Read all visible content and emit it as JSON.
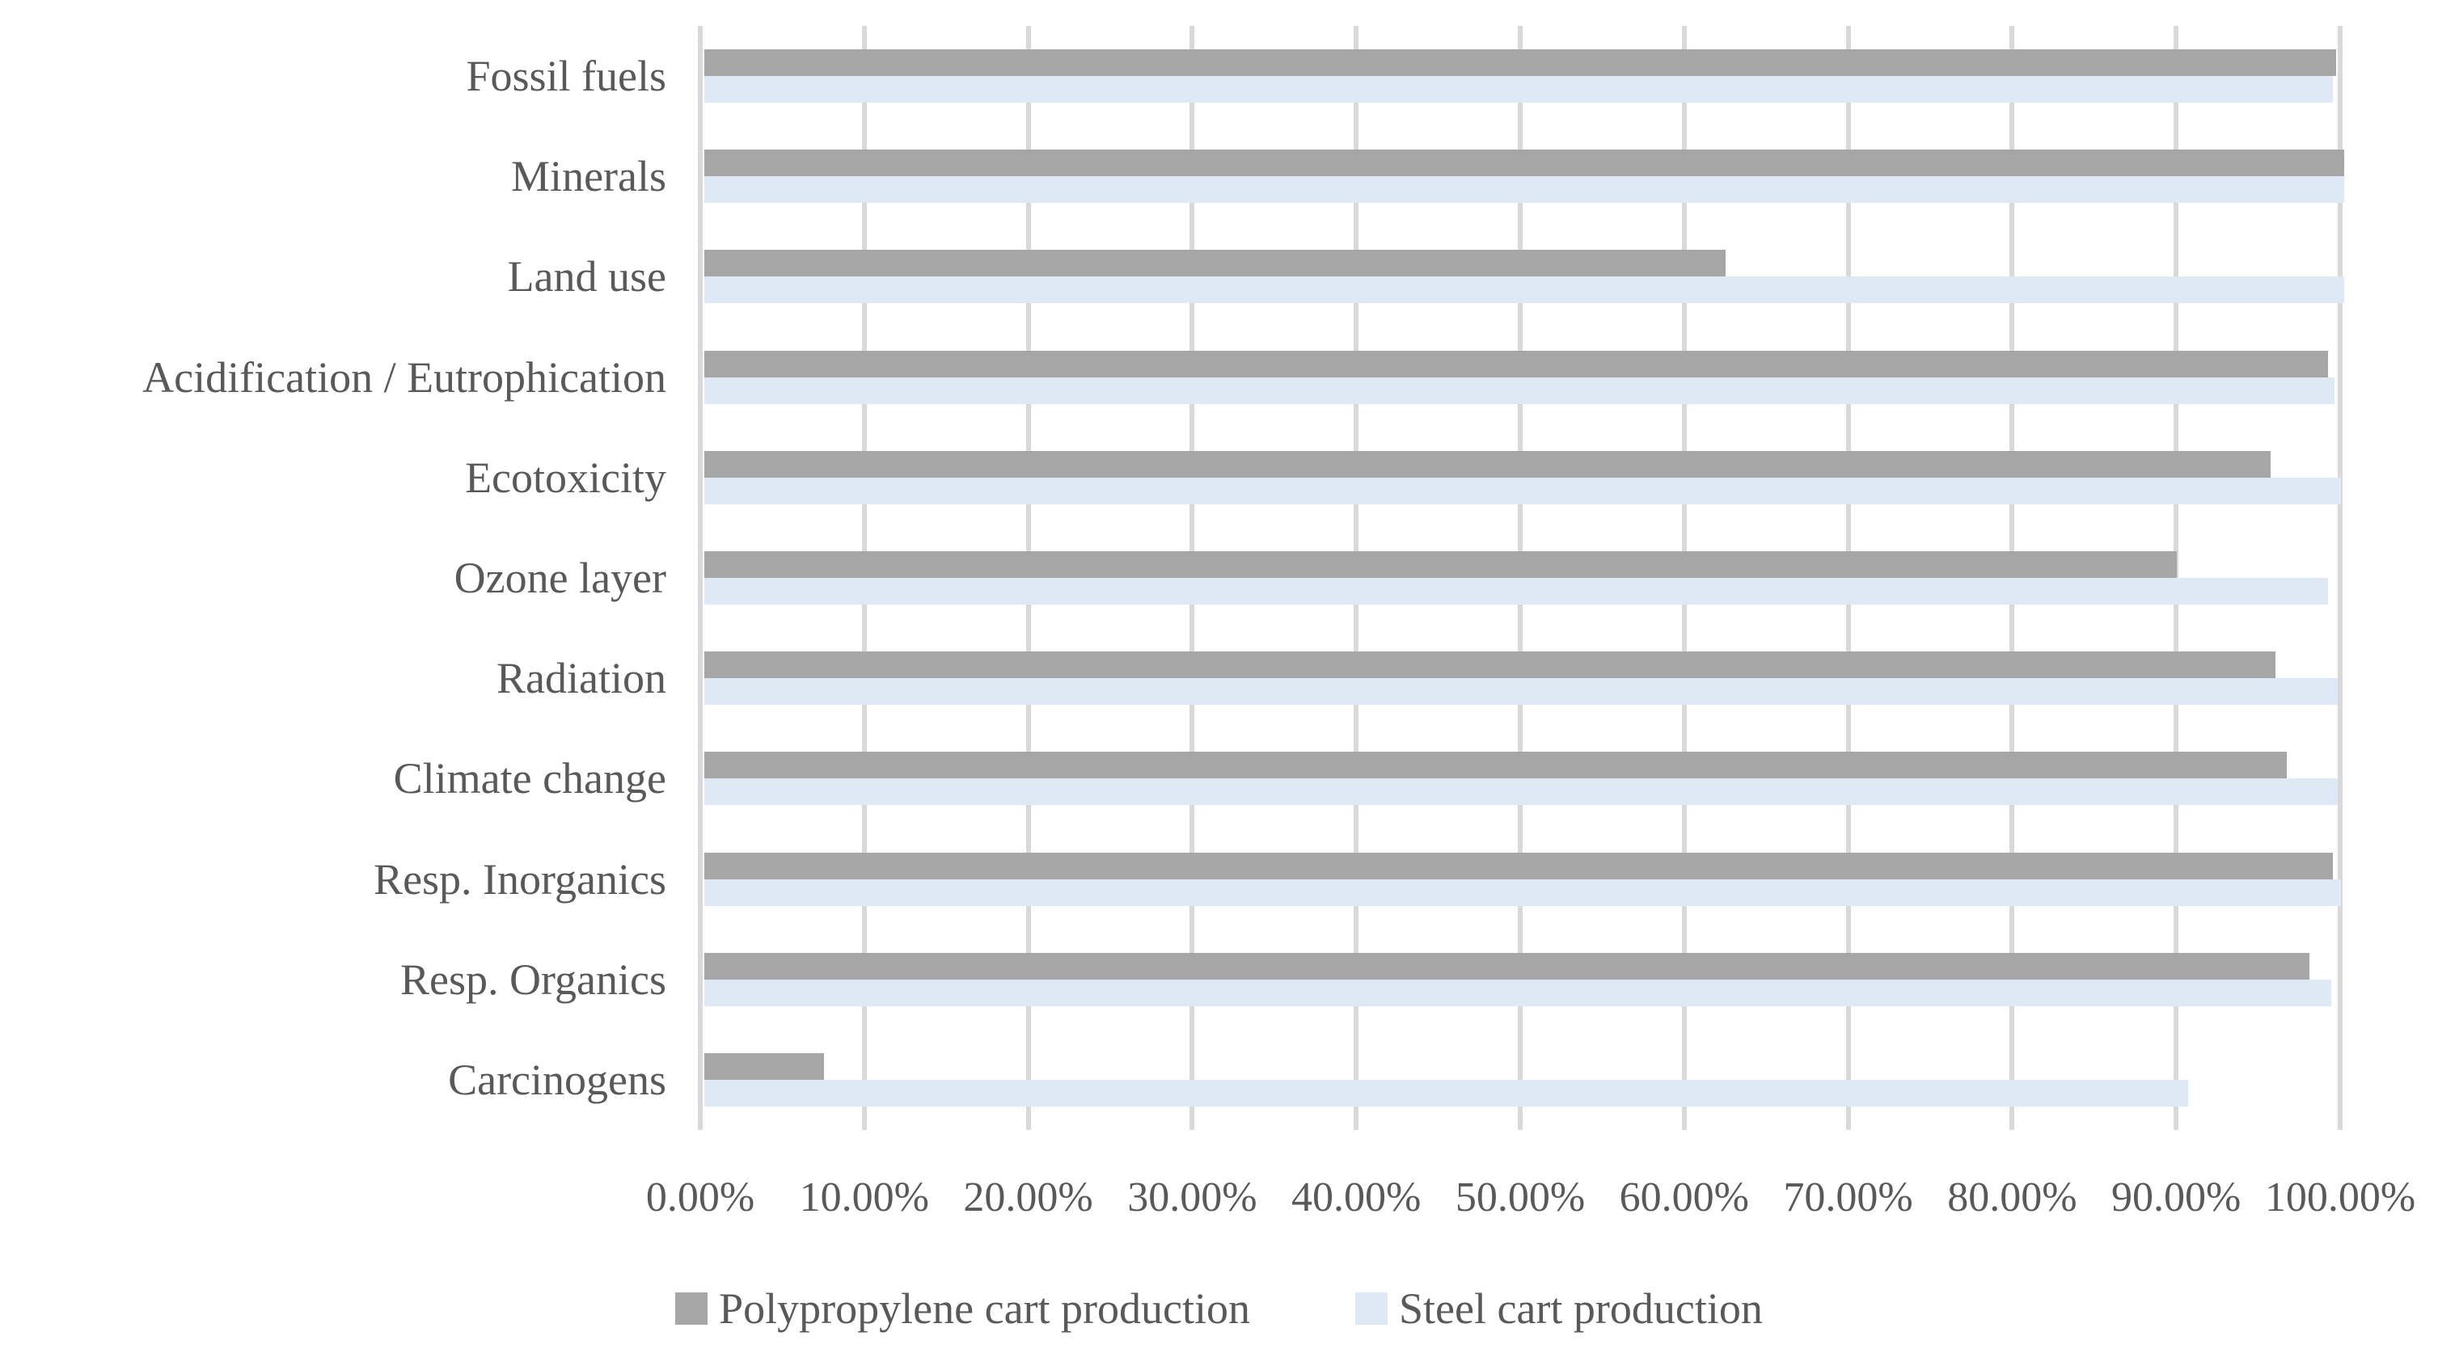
{
  "chart_data": {
    "type": "bar",
    "orientation": "horizontal",
    "title": "",
    "xlabel": "",
    "ylabel": "",
    "grid": true,
    "legend_position": "bottom",
    "categories": [
      "Fossil fuels",
      "Minerals",
      "Land use",
      "Acidification / Eutrophication",
      "Ecotoxicity",
      "Ozone layer",
      "Radiation",
      "Climate change",
      "Resp. Inorganics",
      "Resp. Organics",
      "Carcinogens"
    ],
    "series": [
      {
        "name": "Polypropylene cart production",
        "color": "#A6A6A6",
        "values": [
          99.5,
          100,
          62.3,
          99.0,
          95.5,
          89.8,
          95.8,
          96.5,
          99.3,
          97.9,
          7.3
        ]
      },
      {
        "name": "Steel cart production",
        "color": "#DEE9F5",
        "values": [
          99.3,
          100,
          100,
          99.4,
          99.8,
          99.0,
          99.6,
          99.6,
          99.8,
          99.2,
          90.5
        ]
      }
    ],
    "x_axis": {
      "min": 0,
      "max": 100,
      "tick_step": 10,
      "unit": "%",
      "tick_labels": [
        "0.00%",
        "10.00%",
        "20.00%",
        "30.00%",
        "40.00%",
        "50.00%",
        "60.00%",
        "70.00%",
        "80.00%",
        "90.00%",
        "100.00%"
      ]
    },
    "colors": {
      "gridline": "#D9D9D9",
      "text": "#595959",
      "background": "#FFFFFF"
    }
  }
}
